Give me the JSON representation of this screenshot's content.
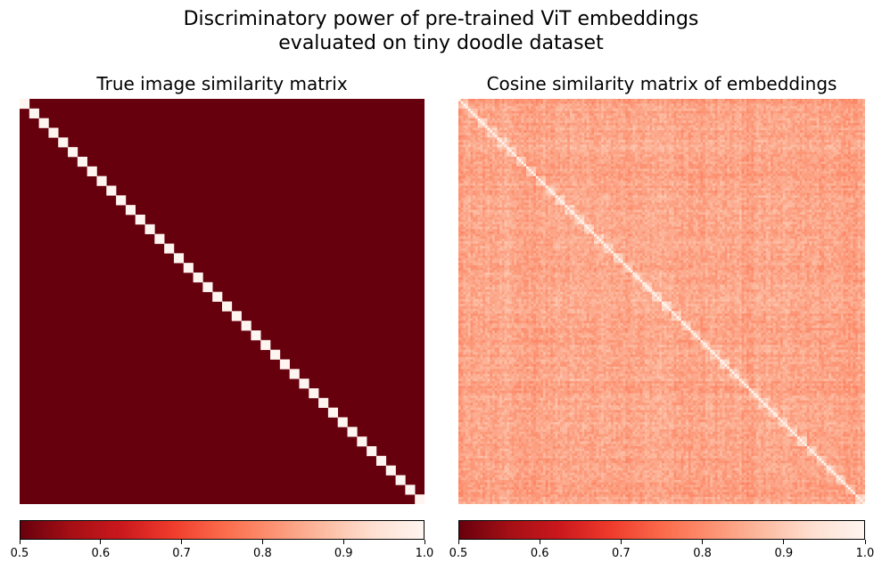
{
  "figure": {
    "title_line1": "Discriminatory power of pre-trained ViT embeddings",
    "title_line2": "evaluated on tiny doodle dataset"
  },
  "chart_data": [
    {
      "type": "heatmap",
      "title": "True image similarity matrix",
      "description_of_values": "block diagonal: value 1.0 on 42 diagonal blocks, value 0.5 elsewhere",
      "colormap": "Reds_r",
      "matrix_size": 42,
      "block_count": 42,
      "on_block_value": 1.0,
      "off_block_value": 0.5,
      "clim": [
        0.5,
        1.0
      ],
      "colorbar": {
        "ticks": [
          0.5,
          0.6,
          0.7,
          0.8,
          0.9,
          1.0
        ],
        "tick_labels": [
          "0.5",
          "0.6",
          "0.7",
          "0.8",
          "0.9",
          "1.0"
        ]
      },
      "axes": "off"
    },
    {
      "type": "heatmap",
      "title": "Cosine similarity matrix of embeddings",
      "description_of_values": "symmetric matrix, diagonal 1.0, off-diagonal mostly 0.75–0.9",
      "colormap": "Reds_r",
      "matrix_size": 168,
      "diagonal_value": 1.0,
      "typical_off_diagonal_range": [
        0.72,
        0.92
      ],
      "clim": [
        0.5,
        1.0
      ],
      "colorbar": {
        "ticks": [
          0.5,
          0.6,
          0.7,
          0.8,
          0.9,
          1.0
        ],
        "tick_labels": [
          "0.5",
          "0.6",
          "0.7",
          "0.8",
          "0.9",
          "1.0"
        ]
      },
      "axes": "off"
    }
  ]
}
